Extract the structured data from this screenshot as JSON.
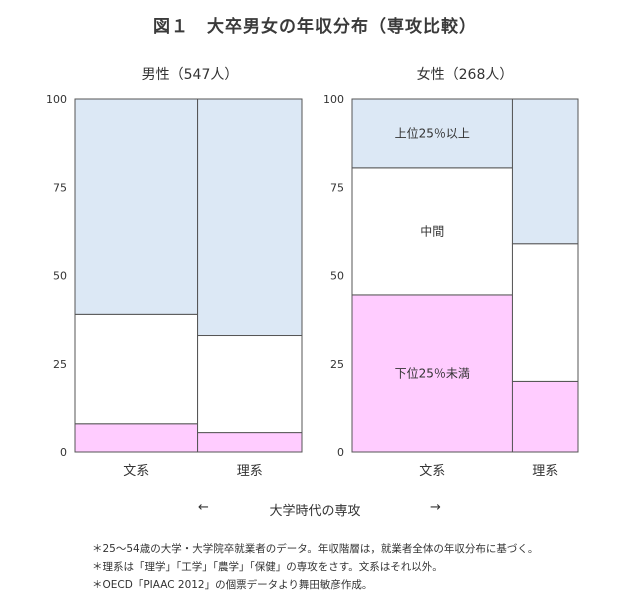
{
  "title": "図１　大卒男女の年収分布（専攻比較）",
  "colors": {
    "top": "#dce8f5",
    "middle": "#ffffff",
    "bottom": "#ffccff",
    "border": "#555555"
  },
  "chart_data": [
    {
      "type": "bar",
      "stacked": true,
      "variable_width": true,
      "title": "男性（547人）",
      "categories": [
        "文系",
        "理系"
      ],
      "category_widths": [
        0.54,
        0.46
      ],
      "ylim": [
        0,
        100
      ],
      "yticks": [
        0,
        25,
        50,
        75,
        100
      ],
      "series": [
        {
          "name": "下位25％未満",
          "values": [
            8,
            5.5
          ]
        },
        {
          "name": "中間",
          "values": [
            31,
            27.5
          ]
        },
        {
          "name": "上位25％以上",
          "values": [
            61,
            67
          ]
        }
      ]
    },
    {
      "type": "bar",
      "stacked": true,
      "variable_width": true,
      "title": "女性（268人）",
      "categories": [
        "文系",
        "理系"
      ],
      "category_widths": [
        0.71,
        0.29
      ],
      "ylim": [
        0,
        100
      ],
      "yticks": [
        0,
        25,
        50,
        75,
        100
      ],
      "series": [
        {
          "name": "下位25％未満",
          "values": [
            44.5,
            20
          ]
        },
        {
          "name": "中間",
          "values": [
            36,
            39
          ]
        },
        {
          "name": "上位25％以上",
          "values": [
            19.5,
            41
          ]
        }
      ]
    }
  ],
  "xaxis": {
    "arrow_left": "←",
    "label": "大学時代の専攻",
    "arrow_right": "→"
  },
  "notes": [
    "＊25～54歳の大学・大学院卒就業者のデータ。年収階層は，就業者全体の年収分布に基づく。",
    "＊理系は「理学」「工学」「農学」「保健」の専攻をさす。文系はそれ以外。",
    "＊OECD「PIAAC 2012」の個票データより舞田敏彦作成。"
  ]
}
